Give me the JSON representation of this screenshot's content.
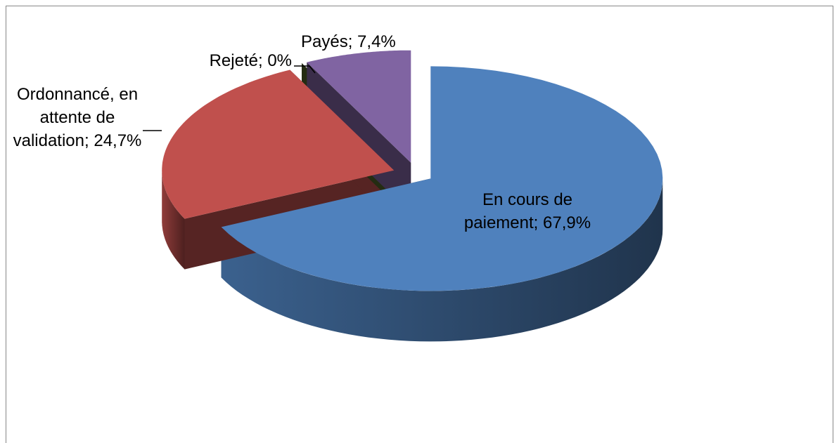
{
  "chart_data": {
    "type": "pie3d",
    "categories": [
      "En cours de paiement",
      "Ordonnancé, en attente de validation",
      "Rejeté",
      "Payés"
    ],
    "values": [
      67.9,
      24.7,
      0,
      7.4
    ],
    "value_labels": [
      "67,9%",
      "24,7%",
      "0%",
      "7,4%"
    ],
    "label_separator": ";",
    "colors": [
      "#4f81bd",
      "#c0504d",
      "#4f6228",
      "#8064a2"
    ]
  }
}
